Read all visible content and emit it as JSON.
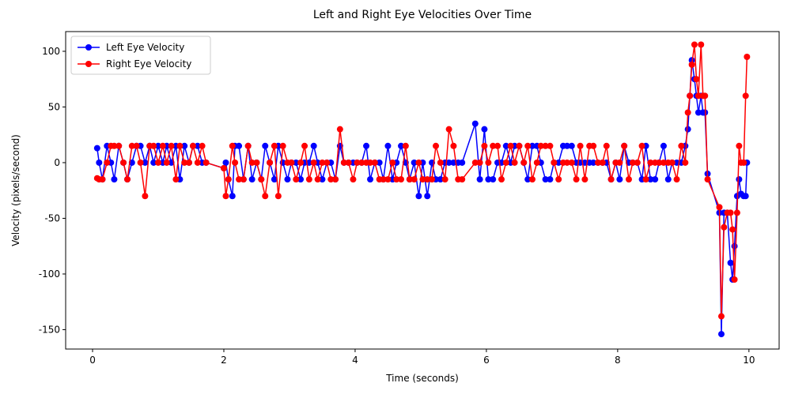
{
  "chart_data": {
    "type": "line",
    "title": "Left and Right Eye Velocities Over Time",
    "x_label": "Time (seconds)",
    "y_label": "Velocity (pixels/second)",
    "x": [
      0.07,
      0.1,
      0.15,
      0.22,
      0.28,
      0.33,
      0.4,
      0.47,
      0.53,
      0.6,
      0.67,
      0.73,
      0.8,
      0.87,
      0.93,
      1.0,
      1.07,
      1.13,
      1.2,
      1.27,
      1.33,
      1.4,
      1.47,
      1.53,
      1.6,
      1.67,
      1.73,
      2.0,
      2.03,
      2.07,
      2.13,
      2.17,
      2.23,
      2.3,
      2.37,
      2.43,
      2.5,
      2.57,
      2.63,
      2.7,
      2.77,
      2.83,
      2.9,
      2.97,
      3.03,
      3.1,
      3.17,
      3.23,
      3.3,
      3.37,
      3.43,
      3.5,
      3.57,
      3.63,
      3.7,
      3.77,
      3.83,
      3.9,
      3.97,
      4.03,
      4.1,
      4.17,
      4.23,
      4.3,
      4.37,
      4.43,
      4.5,
      4.57,
      4.63,
      4.7,
      4.77,
      4.83,
      4.9,
      4.97,
      5.03,
      5.1,
      5.17,
      5.23,
      5.3,
      5.37,
      5.43,
      5.5,
      5.57,
      5.63,
      5.83,
      5.9,
      5.97,
      6.03,
      6.1,
      6.17,
      6.23,
      6.3,
      6.37,
      6.43,
      6.5,
      6.57,
      6.63,
      6.7,
      6.77,
      6.83,
      6.9,
      6.97,
      7.03,
      7.1,
      7.17,
      7.23,
      7.3,
      7.37,
      7.43,
      7.5,
      7.57,
      7.63,
      7.7,
      7.77,
      7.83,
      7.9,
      7.97,
      8.03,
      8.1,
      8.17,
      8.23,
      8.3,
      8.37,
      8.43,
      8.5,
      8.57,
      8.63,
      8.7,
      8.77,
      8.83,
      8.9,
      8.97,
      9.03,
      9.07,
      9.1,
      9.13,
      9.17,
      9.2,
      9.23,
      9.27,
      9.3,
      9.33,
      9.37,
      9.55,
      9.58,
      9.62,
      9.67,
      9.72,
      9.75,
      9.78,
      9.82,
      9.85,
      9.88,
      9.92,
      9.95,
      9.97
    ],
    "series": [
      {
        "name": "Left Eye Velocity",
        "color": "#0000ff",
        "values": [
          13,
          0,
          -15,
          15,
          0,
          -15,
          15,
          0,
          -15,
          0,
          15,
          15,
          0,
          15,
          0,
          15,
          0,
          15,
          0,
          15,
          -15,
          15,
          0,
          15,
          15,
          0,
          0,
          -5,
          0,
          -15,
          -30,
          15,
          15,
          -15,
          15,
          -15,
          0,
          -15,
          15,
          0,
          -15,
          15,
          0,
          -15,
          0,
          0,
          -15,
          0,
          0,
          15,
          0,
          -15,
          0,
          0,
          -15,
          15,
          0,
          0,
          0,
          0,
          0,
          15,
          -15,
          0,
          0,
          -15,
          15,
          -15,
          0,
          15,
          0,
          -15,
          0,
          -30,
          0,
          -30,
          0,
          -15,
          -15,
          0,
          0,
          0,
          0,
          0,
          35,
          -15,
          30,
          -15,
          -15,
          0,
          0,
          15,
          0,
          15,
          15,
          0,
          -15,
          15,
          15,
          0,
          -15,
          -15,
          0,
          0,
          15,
          15,
          15,
          0,
          0,
          0,
          0,
          0,
          0,
          0,
          0,
          -15,
          0,
          -15,
          15,
          0,
          0,
          0,
          -15,
          15,
          -15,
          -15,
          0,
          15,
          -15,
          0,
          0,
          0,
          15,
          30,
          60,
          92,
          75,
          60,
          45,
          60,
          45,
          45,
          -10,
          -45,
          -154,
          -45,
          -45,
          -90,
          -105,
          -75,
          -30,
          -15,
          -28,
          -30,
          -30,
          0
        ]
      },
      {
        "name": "Right Eye Velocity",
        "color": "#ff0000",
        "values": [
          -14,
          -15,
          -15,
          0,
          15,
          15,
          15,
          0,
          -15,
          15,
          15,
          0,
          -30,
          15,
          15,
          0,
          15,
          0,
          15,
          -15,
          15,
          0,
          0,
          15,
          0,
          15,
          0,
          -5,
          -30,
          -15,
          15,
          0,
          -15,
          -15,
          15,
          0,
          0,
          -15,
          -30,
          0,
          15,
          -30,
          15,
          0,
          0,
          -15,
          0,
          15,
          -15,
          0,
          -15,
          0,
          0,
          -15,
          -15,
          30,
          0,
          0,
          -15,
          0,
          0,
          0,
          0,
          0,
          -15,
          -15,
          -15,
          0,
          -15,
          -15,
          15,
          -15,
          -15,
          0,
          -15,
          -15,
          -15,
          15,
          0,
          -15,
          30,
          15,
          -15,
          -15,
          0,
          0,
          15,
          0,
          15,
          15,
          -15,
          0,
          15,
          0,
          15,
          0,
          15,
          -15,
          0,
          15,
          15,
          15,
          0,
          -15,
          0,
          0,
          0,
          -15,
          15,
          -15,
          15,
          15,
          0,
          0,
          15,
          -15,
          0,
          0,
          15,
          -15,
          0,
          0,
          15,
          -15,
          0,
          0,
          0,
          0,
          0,
          0,
          -15,
          15,
          0,
          45,
          60,
          88,
          106,
          75,
          60,
          106,
          60,
          60,
          -15,
          -40,
          -138,
          -58,
          -45,
          -45,
          -60,
          -105,
          -45,
          15,
          0,
          0,
          60,
          95
        ]
      }
    ],
    "xlim": [
      -0.41,
      10.46
    ],
    "ylim": [
      -167.4,
      117.7
    ],
    "xticks": [
      0,
      2,
      4,
      6,
      8,
      10
    ],
    "yticks": [
      -150,
      -100,
      -50,
      0,
      50,
      100
    ],
    "legend": "upper left",
    "grid": false
  }
}
